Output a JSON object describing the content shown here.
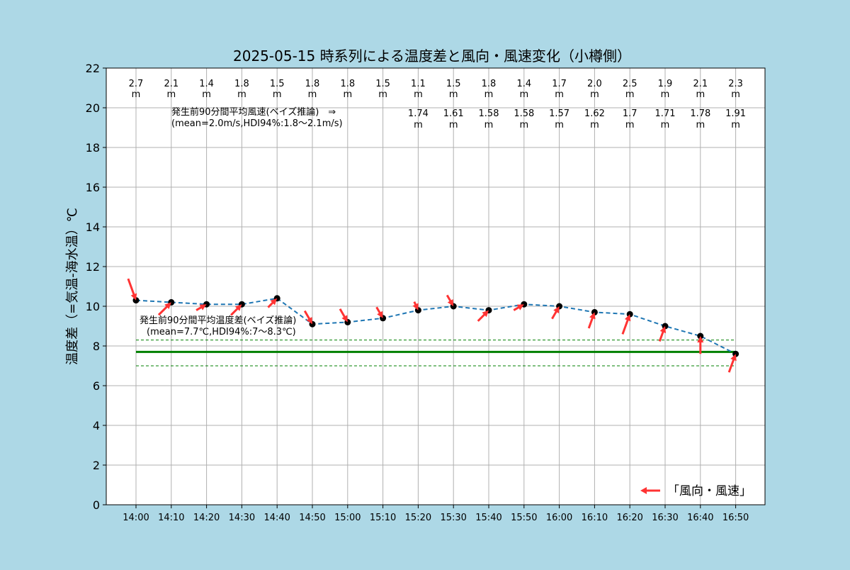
{
  "chart_data": {
    "type": "line",
    "title": "2025-05-15 時系列による温度差と風向・風速変化（小樽側）",
    "ylabel": "温度差（=気温-海水温）℃",
    "xlabel": "",
    "ylim": [
      0,
      22
    ],
    "yticks": [
      "0",
      "2",
      "4",
      "6",
      "8",
      "10",
      "12",
      "14",
      "16",
      "18",
      "20",
      "22"
    ],
    "grid": true,
    "categories": [
      "14:00",
      "14:10",
      "14:20",
      "14:30",
      "14:40",
      "14:50",
      "15:00",
      "15:10",
      "15:20",
      "15:30",
      "15:40",
      "15:50",
      "16:00",
      "16:10",
      "16:20",
      "16:30",
      "16:40",
      "16:50"
    ],
    "series": [
      {
        "values": [
          10.3,
          10.2,
          10.1,
          10.1,
          10.4,
          9.1,
          9.2,
          9.4,
          9.8,
          10.0,
          9.8,
          10.1,
          10.0,
          9.7,
          9.6,
          9.0,
          8.5,
          7.6
        ],
        "color": "#1f77b4",
        "style": "dashed"
      }
    ],
    "wind": {
      "speed_labels": [
        "2.7",
        "2.1",
        "1.4",
        "1.8",
        "1.5",
        "1.8",
        "1.8",
        "1.5",
        "1.1",
        "1.5",
        "1.8",
        "1.4",
        "1.7",
        "2.0",
        "2.5",
        "1.9",
        "2.1",
        "2.3"
      ],
      "speed_unit": "m",
      "speeds": [
        2.7,
        2.1,
        1.4,
        1.8,
        1.5,
        1.8,
        1.8,
        1.5,
        1.1,
        1.5,
        1.8,
        1.4,
        1.7,
        2.0,
        2.5,
        1.9,
        2.1,
        2.3
      ],
      "directions_deg": [
        340,
        225,
        240,
        225,
        225,
        330,
        330,
        330,
        335,
        330,
        225,
        240,
        210,
        200,
        200,
        200,
        180,
        200
      ],
      "arrow_color": "#ff3333"
    },
    "bayes_wind_labels": [
      "",
      "",
      "",
      "",
      "",
      "",
      "",
      "",
      "1.74",
      "1.61",
      "1.58",
      "1.58",
      "1.57",
      "1.62",
      "1.7",
      "1.71",
      "1.78",
      "1.91"
    ],
    "bayes_wind_unit": "m",
    "temp_band": {
      "mean": 7.7,
      "lower": 7.0,
      "upper": 8.3,
      "color": "#008000"
    },
    "annotations": {
      "wind_line1": "発生前90分間平均風速(ベイズ推論)　⇒",
      "wind_line2": "(mean=2.0m/s,HDI94%:1.8～2.1m/s)",
      "temp_line1": "発生前90分間平均温度差(ベイズ推論)",
      "temp_line2": "(mean=7.7℃,HDI94%:7～8.3℃)"
    },
    "legend": {
      "label": "「風向・風速」",
      "placement": "lower-right"
    }
  }
}
